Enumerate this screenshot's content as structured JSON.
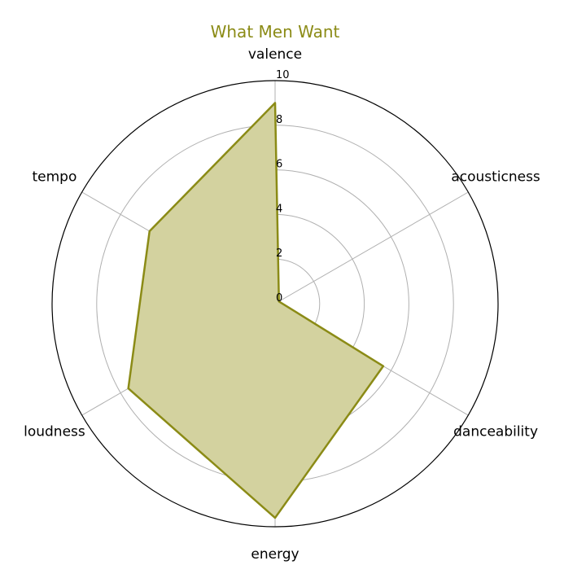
{
  "chart_data": {
    "type": "radar",
    "title": "What Men Want",
    "axes": [
      "valence",
      "acousticness",
      "danceability",
      "energy",
      "loudness",
      "tempo"
    ],
    "series": [
      {
        "values": [
          9.0,
          0.2,
          5.6,
          9.6,
          7.6,
          6.5
        ]
      }
    ],
    "rlim": [
      0,
      10
    ],
    "rticks": [
      "0",
      "2",
      "4",
      "6",
      "8",
      "10"
    ],
    "grid": true,
    "colors": {
      "series": "#8b8b16",
      "fill": "#d3d29f",
      "title": "#8b8b16",
      "grid": "#b0b0b0",
      "frame": "#000000"
    }
  }
}
